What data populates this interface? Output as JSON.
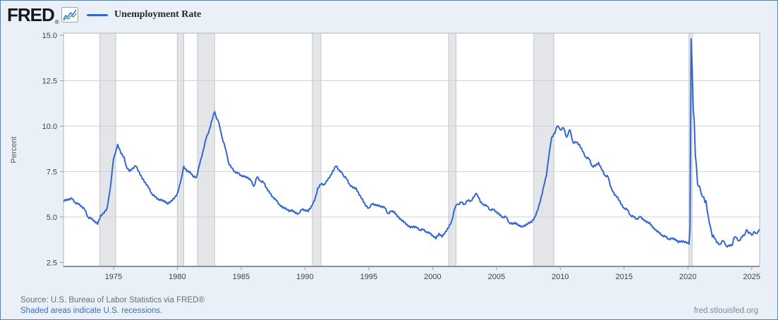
{
  "header": {
    "logo_text": "FRED",
    "logo_registered": "®",
    "legend": {
      "label": "Unemployment Rate"
    }
  },
  "footer": {
    "source_line": "Source: U.S. Bureau of Labor Statistics via FRED®",
    "recession_note": "Shaded areas indicate U.S. recessions.",
    "site_link": "fred.stlouisfed.org"
  },
  "colors": {
    "background": "#eaf0f7",
    "frame_border": "#5b7fae",
    "plot_bg": "#ffffff",
    "plot_frame": "#b3b6ba",
    "axis_line": "#8d9196",
    "gridline": "#cfd1d4",
    "recession_fill": "#e4e5e8",
    "recession_edge": "#c3c5c9",
    "line": "#3366d0",
    "tick": "#9a9ea3"
  },
  "chart_data": {
    "type": "line",
    "title": "Unemployment Rate",
    "xlabel": "",
    "ylabel": "Percent",
    "y_tick_labels": [
      "2.5",
      "5.0",
      "7.5",
      "10.0",
      "12.5",
      "15.0"
    ],
    "y_ticks": [
      2.5,
      5.0,
      7.5,
      10.0,
      12.5,
      15.0
    ],
    "x_ticks": [
      1975,
      1980,
      1985,
      1990,
      1995,
      2000,
      2005,
      2010,
      2015,
      2020,
      2025
    ],
    "xlim": [
      1971.08,
      2025.62
    ],
    "ylim": [
      2.28,
      15.12
    ],
    "grid": "horizontal-only, no gridline at 15.0 or 2.5",
    "legend_position": "top-left header row",
    "texture_jitter": 0.05,
    "recessions": [
      [
        1973.92,
        1975.17
      ],
      [
        1980.0,
        1980.5
      ],
      [
        1981.58,
        1982.92
      ],
      [
        1990.58,
        1991.25
      ],
      [
        2001.25,
        2001.83
      ],
      [
        2007.92,
        2009.5
      ],
      [
        2020.08,
        2020.33
      ]
    ],
    "series": [
      {
        "name": "Unemployment Rate",
        "units": "Percent",
        "points": [
          [
            1971.0,
            5.9
          ],
          [
            1971.25,
            5.9
          ],
          [
            1971.5,
            6.0
          ],
          [
            1971.75,
            6.0
          ],
          [
            1972.0,
            5.8
          ],
          [
            1972.25,
            5.7
          ],
          [
            1972.5,
            5.6
          ],
          [
            1972.75,
            5.4
          ],
          [
            1973.0,
            5.0
          ],
          [
            1973.25,
            4.9
          ],
          [
            1973.5,
            4.8
          ],
          [
            1973.75,
            4.6
          ],
          [
            1974.0,
            5.1
          ],
          [
            1974.25,
            5.2
          ],
          [
            1974.5,
            5.5
          ],
          [
            1974.75,
            6.6
          ],
          [
            1975.0,
            8.2
          ],
          [
            1975.33,
            9.0
          ],
          [
            1975.58,
            8.5
          ],
          [
            1975.83,
            8.3
          ],
          [
            1976.0,
            7.8
          ],
          [
            1976.25,
            7.5
          ],
          [
            1976.5,
            7.7
          ],
          [
            1976.75,
            7.8
          ],
          [
            1977.0,
            7.5
          ],
          [
            1977.25,
            7.1
          ],
          [
            1977.5,
            6.9
          ],
          [
            1977.75,
            6.6
          ],
          [
            1978.0,
            6.3
          ],
          [
            1978.25,
            6.1
          ],
          [
            1978.5,
            6.0
          ],
          [
            1978.75,
            5.9
          ],
          [
            1979.0,
            5.9
          ],
          [
            1979.25,
            5.7
          ],
          [
            1979.5,
            5.9
          ],
          [
            1979.75,
            6.0
          ],
          [
            1980.0,
            6.3
          ],
          [
            1980.25,
            6.9
          ],
          [
            1980.5,
            7.8
          ],
          [
            1980.75,
            7.5
          ],
          [
            1981.0,
            7.5
          ],
          [
            1981.25,
            7.2
          ],
          [
            1981.5,
            7.2
          ],
          [
            1981.75,
            7.9
          ],
          [
            1982.0,
            8.6
          ],
          [
            1982.25,
            9.3
          ],
          [
            1982.5,
            9.8
          ],
          [
            1982.75,
            10.4
          ],
          [
            1982.92,
            10.8
          ],
          [
            1983.08,
            10.4
          ],
          [
            1983.25,
            10.2
          ],
          [
            1983.5,
            9.4
          ],
          [
            1983.75,
            8.8
          ],
          [
            1983.92,
            8.3
          ],
          [
            1984.0,
            8.0
          ],
          [
            1984.25,
            7.7
          ],
          [
            1984.5,
            7.5
          ],
          [
            1984.75,
            7.4
          ],
          [
            1985.0,
            7.3
          ],
          [
            1985.25,
            7.2
          ],
          [
            1985.5,
            7.2
          ],
          [
            1985.75,
            7.0
          ],
          [
            1986.0,
            6.7
          ],
          [
            1986.25,
            7.2
          ],
          [
            1986.5,
            7.0
          ],
          [
            1986.75,
            6.9
          ],
          [
            1987.0,
            6.6
          ],
          [
            1987.25,
            6.3
          ],
          [
            1987.5,
            6.1
          ],
          [
            1987.75,
            5.9
          ],
          [
            1988.0,
            5.7
          ],
          [
            1988.25,
            5.5
          ],
          [
            1988.5,
            5.5
          ],
          [
            1988.75,
            5.3
          ],
          [
            1989.0,
            5.4
          ],
          [
            1989.25,
            5.2
          ],
          [
            1989.5,
            5.2
          ],
          [
            1989.75,
            5.4
          ],
          [
            1990.0,
            5.4
          ],
          [
            1990.25,
            5.3
          ],
          [
            1990.5,
            5.6
          ],
          [
            1990.75,
            5.9
          ],
          [
            1990.92,
            6.3
          ],
          [
            1991.0,
            6.6
          ],
          [
            1991.25,
            6.8
          ],
          [
            1991.5,
            6.8
          ],
          [
            1991.75,
            7.0
          ],
          [
            1992.0,
            7.3
          ],
          [
            1992.42,
            7.8
          ],
          [
            1992.67,
            7.6
          ],
          [
            1992.92,
            7.4
          ],
          [
            1993.0,
            7.3
          ],
          [
            1993.25,
            7.1
          ],
          [
            1993.5,
            6.8
          ],
          [
            1993.75,
            6.6
          ],
          [
            1994.0,
            6.6
          ],
          [
            1994.25,
            6.2
          ],
          [
            1994.5,
            6.0
          ],
          [
            1994.75,
            5.6
          ],
          [
            1995.0,
            5.5
          ],
          [
            1995.25,
            5.7
          ],
          [
            1995.5,
            5.7
          ],
          [
            1995.75,
            5.6
          ],
          [
            1996.0,
            5.6
          ],
          [
            1996.25,
            5.5
          ],
          [
            1996.5,
            5.2
          ],
          [
            1996.75,
            5.3
          ],
          [
            1997.0,
            5.3
          ],
          [
            1997.25,
            5.0
          ],
          [
            1997.5,
            4.9
          ],
          [
            1997.75,
            4.7
          ],
          [
            1998.0,
            4.6
          ],
          [
            1998.25,
            4.4
          ],
          [
            1998.5,
            4.5
          ],
          [
            1998.75,
            4.4
          ],
          [
            1999.0,
            4.3
          ],
          [
            1999.25,
            4.3
          ],
          [
            1999.5,
            4.2
          ],
          [
            1999.75,
            4.1
          ],
          [
            2000.0,
            4.0
          ],
          [
            2000.25,
            3.8
          ],
          [
            2000.5,
            4.1
          ],
          [
            2000.75,
            3.9
          ],
          [
            2001.0,
            4.2
          ],
          [
            2001.25,
            4.4
          ],
          [
            2001.5,
            4.8
          ],
          [
            2001.75,
            5.5
          ],
          [
            2001.92,
            5.7
          ],
          [
            2002.0,
            5.7
          ],
          [
            2002.25,
            5.8
          ],
          [
            2002.5,
            5.7
          ],
          [
            2002.75,
            5.9
          ],
          [
            2003.0,
            5.9
          ],
          [
            2003.25,
            6.1
          ],
          [
            2003.42,
            6.3
          ],
          [
            2003.58,
            6.1
          ],
          [
            2003.75,
            5.8
          ],
          [
            2004.0,
            5.7
          ],
          [
            2004.25,
            5.6
          ],
          [
            2004.5,
            5.4
          ],
          [
            2004.75,
            5.4
          ],
          [
            2005.0,
            5.3
          ],
          [
            2005.25,
            5.1
          ],
          [
            2005.5,
            5.0
          ],
          [
            2005.75,
            5.0
          ],
          [
            2006.0,
            4.7
          ],
          [
            2006.25,
            4.6
          ],
          [
            2006.5,
            4.7
          ],
          [
            2006.75,
            4.5
          ],
          [
            2007.0,
            4.5
          ],
          [
            2007.25,
            4.5
          ],
          [
            2007.5,
            4.7
          ],
          [
            2007.75,
            4.7
          ],
          [
            2008.0,
            5.0
          ],
          [
            2008.25,
            5.4
          ],
          [
            2008.5,
            6.1
          ],
          [
            2008.75,
            6.8
          ],
          [
            2008.92,
            7.3
          ],
          [
            2009.0,
            7.8
          ],
          [
            2009.17,
            8.7
          ],
          [
            2009.33,
            9.4
          ],
          [
            2009.58,
            9.6
          ],
          [
            2009.75,
            10.0
          ],
          [
            2009.92,
            9.9
          ],
          [
            2010.0,
            9.8
          ],
          [
            2010.25,
            9.9
          ],
          [
            2010.5,
            9.4
          ],
          [
            2010.75,
            9.8
          ],
          [
            2010.92,
            9.3
          ],
          [
            2011.0,
            9.1
          ],
          [
            2011.25,
            9.1
          ],
          [
            2011.5,
            9.0
          ],
          [
            2011.75,
            8.6
          ],
          [
            2012.0,
            8.3
          ],
          [
            2012.25,
            8.2
          ],
          [
            2012.5,
            7.8
          ],
          [
            2012.75,
            7.8
          ],
          [
            2013.0,
            8.0
          ],
          [
            2013.25,
            7.6
          ],
          [
            2013.5,
            7.3
          ],
          [
            2013.75,
            7.2
          ],
          [
            2013.92,
            6.7
          ],
          [
            2014.0,
            6.6
          ],
          [
            2014.25,
            6.2
          ],
          [
            2014.5,
            6.1
          ],
          [
            2014.75,
            5.7
          ],
          [
            2015.0,
            5.5
          ],
          [
            2015.25,
            5.4
          ],
          [
            2015.5,
            5.1
          ],
          [
            2015.75,
            5.0
          ],
          [
            2016.0,
            4.9
          ],
          [
            2016.25,
            5.0
          ],
          [
            2016.5,
            4.9
          ],
          [
            2016.75,
            4.7
          ],
          [
            2017.0,
            4.7
          ],
          [
            2017.25,
            4.4
          ],
          [
            2017.5,
            4.3
          ],
          [
            2017.75,
            4.1
          ],
          [
            2018.0,
            4.0
          ],
          [
            2018.25,
            3.9
          ],
          [
            2018.5,
            3.8
          ],
          [
            2018.75,
            3.8
          ],
          [
            2019.0,
            3.8
          ],
          [
            2019.25,
            3.6
          ],
          [
            2019.5,
            3.7
          ],
          [
            2019.75,
            3.6
          ],
          [
            2020.0,
            3.6
          ],
          [
            2020.083,
            3.5
          ],
          [
            2020.167,
            4.4
          ],
          [
            2020.25,
            14.8
          ],
          [
            2020.333,
            13.2
          ],
          [
            2020.417,
            11.0
          ],
          [
            2020.5,
            10.2
          ],
          [
            2020.583,
            8.4
          ],
          [
            2020.667,
            7.8
          ],
          [
            2020.75,
            6.8
          ],
          [
            2020.833,
            6.7
          ],
          [
            2020.917,
            6.7
          ],
          [
            2021.0,
            6.4
          ],
          [
            2021.083,
            6.2
          ],
          [
            2021.167,
            6.1
          ],
          [
            2021.25,
            6.1
          ],
          [
            2021.333,
            5.8
          ],
          [
            2021.417,
            5.9
          ],
          [
            2021.5,
            5.4
          ],
          [
            2021.583,
            5.1
          ],
          [
            2021.667,
            4.7
          ],
          [
            2021.75,
            4.5
          ],
          [
            2021.833,
            4.2
          ],
          [
            2021.917,
            3.9
          ],
          [
            2022.0,
            4.0
          ],
          [
            2022.25,
            3.6
          ],
          [
            2022.5,
            3.5
          ],
          [
            2022.75,
            3.7
          ],
          [
            2022.92,
            3.5
          ],
          [
            2023.0,
            3.4
          ],
          [
            2023.25,
            3.4
          ],
          [
            2023.5,
            3.5
          ],
          [
            2023.58,
            3.8
          ],
          [
            2023.75,
            3.9
          ],
          [
            2023.92,
            3.7
          ],
          [
            2024.0,
            3.7
          ],
          [
            2024.25,
            3.9
          ],
          [
            2024.5,
            4.1
          ],
          [
            2024.58,
            4.3
          ],
          [
            2024.75,
            4.1
          ],
          [
            2024.92,
            4.1
          ],
          [
            2025.0,
            4.0
          ],
          [
            2025.17,
            4.2
          ],
          [
            2025.33,
            4.1
          ],
          [
            2025.5,
            4.2
          ],
          [
            2025.6,
            4.3
          ]
        ]
      }
    ]
  }
}
